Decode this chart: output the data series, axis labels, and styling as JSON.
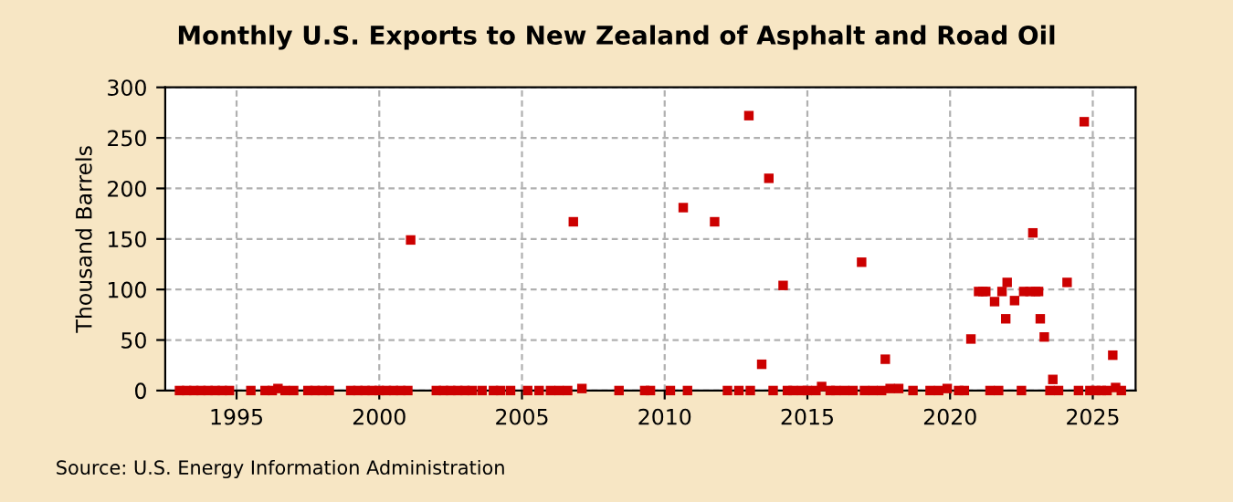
{
  "chart_data": {
    "type": "scatter",
    "title": "Monthly U.S. Exports to New Zealand of Asphalt and Road Oil",
    "ylabel": "Thousand Barrels",
    "annotations": [
      "Source: U.S. Energy Information Administration"
    ],
    "series": [
      {
        "color": "#cc0000",
        "x": [
          1993.0,
          1993.25,
          1993.5,
          1993.75,
          1994.0,
          1994.25,
          1994.5,
          1994.75,
          1995.5,
          1996.0,
          1996.25,
          1996.45,
          1996.7,
          1997.0,
          1997.5,
          1997.75,
          1998.0,
          1998.25,
          1999.0,
          1999.25,
          1999.5,
          1999.75,
          2000.0,
          2000.25,
          2000.5,
          2000.75,
          2001.0,
          2001.1,
          2002.0,
          2002.25,
          2002.5,
          2002.75,
          2003.0,
          2003.25,
          2003.6,
          2004.0,
          2004.25,
          2004.6,
          2005.2,
          2005.6,
          2006.0,
          2006.3,
          2006.6,
          2006.8,
          2007.1,
          2008.4,
          2009.3,
          2009.5,
          2010.2,
          2010.65,
          2010.8,
          2011.75,
          2012.2,
          2012.6,
          2012.95,
          2013.0,
          2013.4,
          2013.65,
          2013.8,
          2014.15,
          2014.3,
          2014.5,
          2014.8,
          2015.0,
          2015.3,
          2015.5,
          2015.8,
          2016.0,
          2016.3,
          2016.6,
          2016.9,
          2017.0,
          2017.3,
          2017.6,
          2017.73,
          2017.9,
          2018.2,
          2018.7,
          2019.3,
          2019.6,
          2019.9,
          2020.3,
          2020.5,
          2020.73,
          2021.0,
          2021.15,
          2021.25,
          2021.4,
          2021.56,
          2021.7,
          2021.82,
          2021.95,
          2022.0,
          2022.26,
          2022.5,
          2022.58,
          2022.8,
          2022.9,
          2023.0,
          2023.1,
          2023.16,
          2023.3,
          2023.5,
          2023.6,
          2023.8,
          2024.1,
          2024.5,
          2024.7,
          2024.9,
          2025.1,
          2025.3,
          2025.5,
          2025.7,
          2025.8,
          2026.0
        ],
        "values": [
          0,
          0,
          0,
          0,
          0,
          0,
          0,
          0,
          0,
          0,
          0,
          2,
          0,
          0,
          0,
          0,
          0,
          0,
          0,
          0,
          0,
          0,
          0,
          0,
          0,
          0,
          0,
          149,
          0,
          0,
          0,
          0,
          0,
          0,
          0,
          0,
          0,
          0,
          0,
          0,
          0,
          0,
          0,
          167,
          2,
          0,
          0,
          0,
          0,
          181,
          0,
          167,
          0,
          0,
          272,
          0,
          26,
          210,
          0,
          104,
          0,
          0,
          0,
          0,
          0,
          4,
          0,
          0,
          0,
          0,
          127,
          0,
          0,
          0,
          31,
          2,
          2,
          0,
          0,
          0,
          2,
          0,
          0,
          51,
          98,
          98,
          98,
          0,
          88,
          0,
          98,
          71,
          107,
          89,
          0,
          98,
          98,
          156,
          98,
          98,
          71,
          53,
          0,
          11,
          0,
          107,
          0,
          266,
          0,
          0,
          0,
          0,
          35,
          3,
          0
        ]
      }
    ],
    "marker": "square",
    "grid": true,
    "xlim": [
      1992.5,
      2026.5
    ],
    "xticks": [
      1995,
      2000,
      2005,
      2010,
      2015,
      2020,
      2025
    ],
    "ylim": [
      0,
      300
    ],
    "yticks": [
      0,
      50,
      100,
      150,
      200,
      250,
      300
    ]
  }
}
